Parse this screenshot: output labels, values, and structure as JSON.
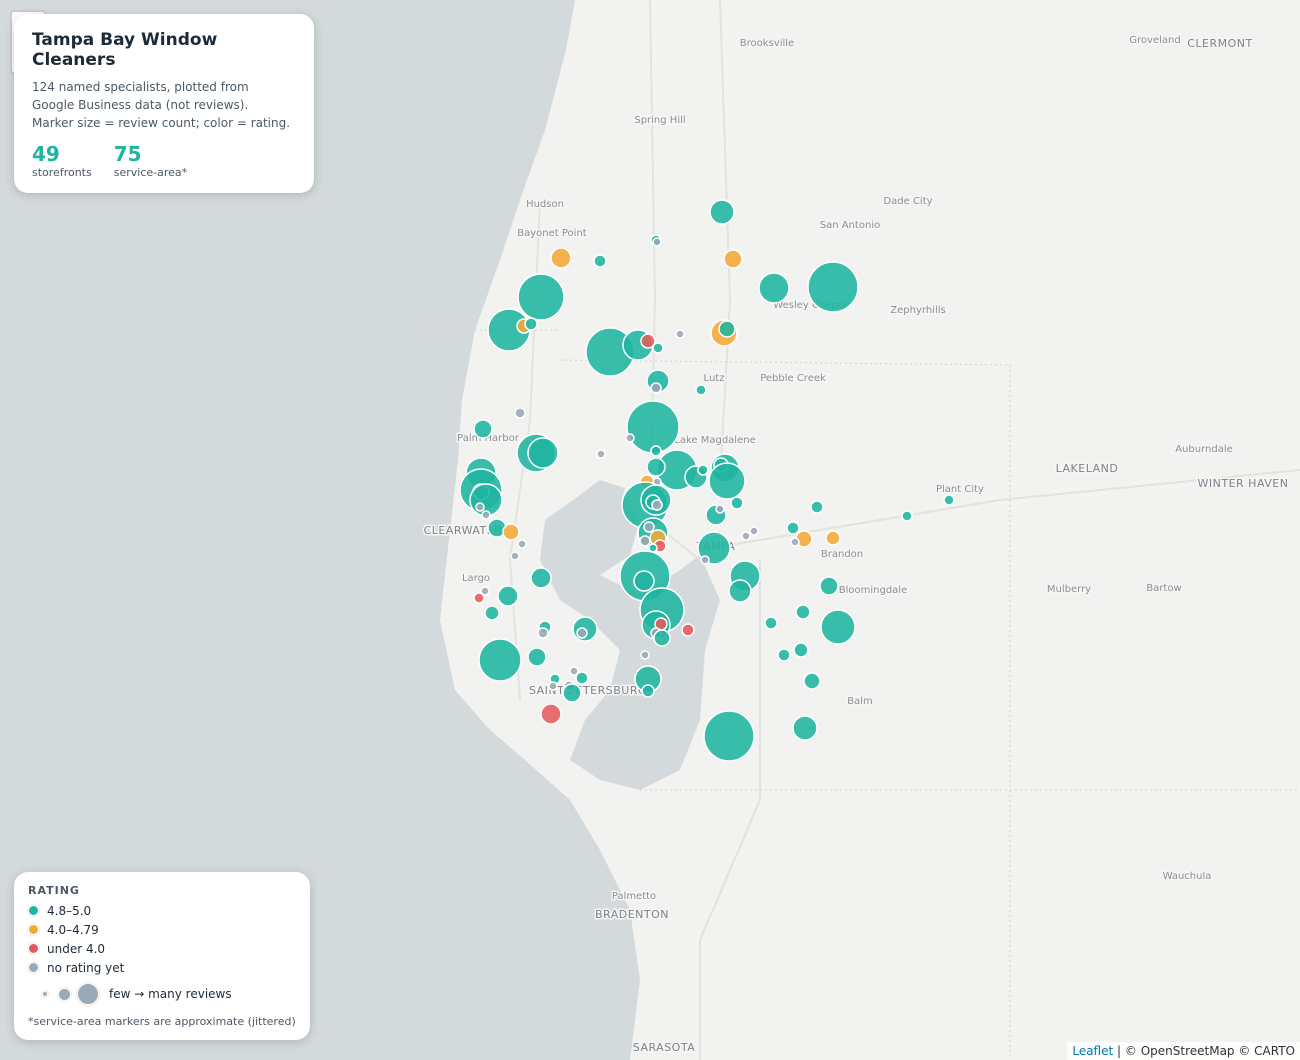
{
  "panel": {
    "title": "Tampa Bay Window Cleaners",
    "subtitle": [
      "124 named specialists, plotted from",
      "Google Business data (not reviews).",
      "Marker size = review count; color = rating."
    ],
    "stats": [
      {
        "value": 49,
        "label": "storefronts"
      },
      {
        "value": 75,
        "label": "service-area*"
      }
    ]
  },
  "legend": {
    "title": "RATING",
    "items": [
      {
        "label": "4.8–5.0",
        "color": "#1fb5a0"
      },
      {
        "label": "4.0–4.79",
        "color": "#f4a838"
      },
      {
        "label": "under 4.0",
        "color": "#e45b5b"
      },
      {
        "label": "no rating yet",
        "color": "#9aa9b6"
      }
    ],
    "size_label": "few → many reviews",
    "footnote": "*service-area markers are approximate (jittered)"
  },
  "places": [
    "Brooksville",
    "Groveland",
    "CLERMONT",
    "Spring Hill",
    "Hudson",
    "Bayonet Point",
    "Dade City",
    "San Antonio",
    "Wesley Chapel",
    "Zephyrhills",
    "Lutz",
    "Pebble Creek",
    "Palm Harbor",
    "Lake Magdalene",
    "LAKELAND",
    "Auburndale",
    "WINTER HAVEN",
    "Plant City",
    "CLEARWATER",
    "TAMPA",
    "Brandon",
    "Largo",
    "Bloomingdale",
    "Mulberry",
    "Bartow",
    "SAINT PETERSBURG",
    "Balm",
    "Palmetto",
    "BRADENTON",
    "Wauchula",
    "SARASOTA"
  ],
  "attribution": {
    "link": "Leaflet",
    "text": "| © OpenStreetMap © CARTO"
  }
}
